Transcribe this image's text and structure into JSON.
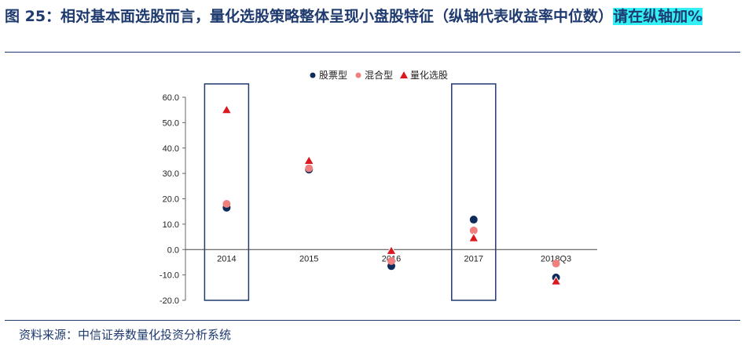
{
  "figure": {
    "title_main": "图 25：相对基本面选股而言，量化选股策略整体呈现小盘股特征（纵轴代表收益率中位数）",
    "title_note": "请在纵轴加%",
    "source": "资料来源：中信证券数量化投资分析系统"
  },
  "chart_data": {
    "type": "scatter",
    "title": "",
    "xlabel": "",
    "ylabel": "",
    "categories": [
      "2014",
      "2015",
      "2016",
      "2017",
      "2018Q3"
    ],
    "ylim": [
      -20,
      60
    ],
    "yticks": [
      -20,
      -10,
      0,
      10,
      20,
      30,
      40,
      50,
      60
    ],
    "ytick_labels": [
      "-20.0",
      "-10.0",
      "0.0",
      "10.0",
      "20.0",
      "30.0",
      "40.0",
      "50.0",
      "60.0"
    ],
    "grid": false,
    "legend_position": "top-center",
    "highlighted_categories": [
      "2014",
      "2017"
    ],
    "series": [
      {
        "name": "股票型",
        "marker": "circle",
        "color": "#0d2b5b",
        "values": [
          16.5,
          31.5,
          -6.5,
          11.8,
          -11.0
        ]
      },
      {
        "name": "混合型",
        "marker": "circle",
        "color": "#f08080",
        "values": [
          18.0,
          32.0,
          -4.5,
          7.5,
          -5.5
        ]
      },
      {
        "name": "量化选股",
        "marker": "triangle",
        "color": "#d9191f",
        "values": [
          55.0,
          35.0,
          -0.5,
          4.5,
          -12.5
        ]
      }
    ]
  }
}
